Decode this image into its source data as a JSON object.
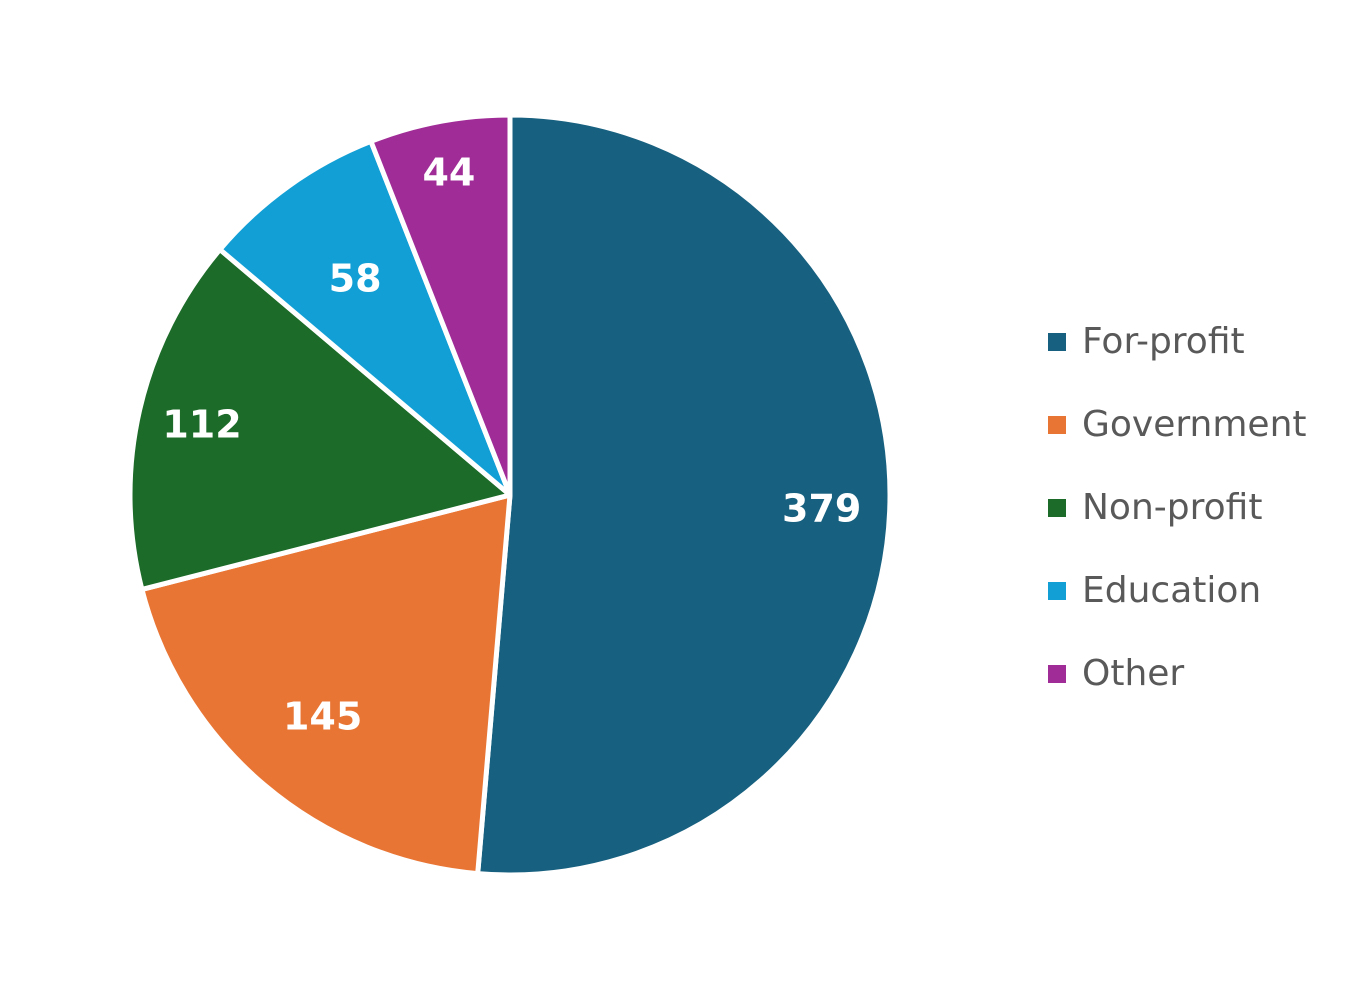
{
  "chart_data": {
    "type": "pie",
    "title": "",
    "categories": [
      "For-profit",
      "Government",
      "Non-profit",
      "Education",
      "Other"
    ],
    "values": [
      379,
      145,
      112,
      58,
      44
    ],
    "data_labels": [
      "379",
      "145",
      "112",
      "58",
      "44"
    ],
    "colors": [
      "#17607f",
      "#e97534",
      "#1c6b28",
      "#119fd6",
      "#a02c97"
    ],
    "start_angle_deg": 0,
    "direction": "clockwise",
    "legend_position": "right"
  }
}
